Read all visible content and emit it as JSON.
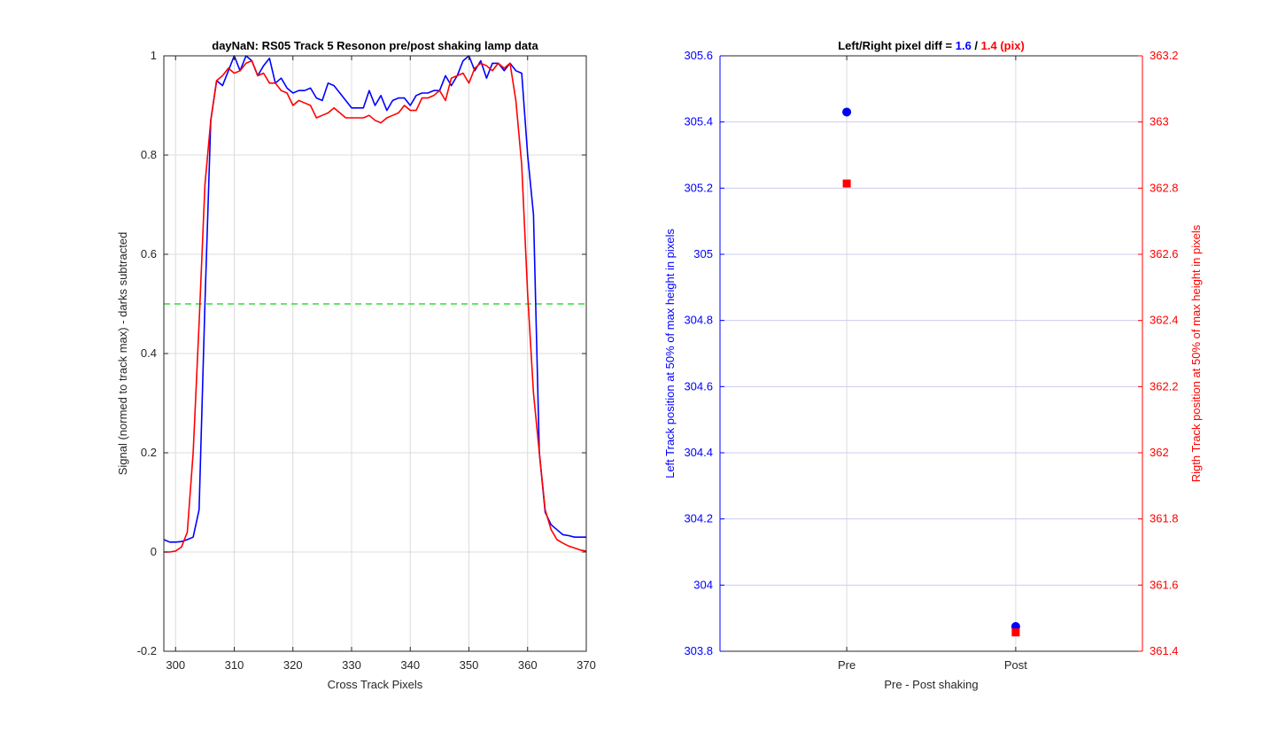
{
  "chart_data": [
    {
      "type": "line",
      "title": "dayNaN: RS05  Track 5 Resonon pre/post shaking lamp data",
      "xlabel": "Cross Track Pixels",
      "ylabel": "Signal (normed to track max) - darks subtracted",
      "xlim": [
        298,
        370
      ],
      "ylim": [
        -0.2,
        1
      ],
      "xticks": [
        300,
        310,
        320,
        330,
        340,
        350,
        360,
        370
      ],
      "xtick_labels": [
        "300",
        "310",
        "320",
        "330",
        "340",
        "350",
        "360",
        "370"
      ],
      "yticks": [
        -0.2,
        0,
        0.2,
        0.4,
        0.6,
        0.8,
        1
      ],
      "ytick_labels": [
        "-0.2",
        "0",
        "0.2",
        "0.4",
        "0.6",
        "0.8",
        "1"
      ],
      "grid": true,
      "hline": {
        "y": 0.5,
        "color": "#33dd33",
        "style": "dashed"
      },
      "series": [
        {
          "color": "#0000ff",
          "x": [
            298,
            299,
            300,
            301,
            302,
            303,
            304,
            305,
            306,
            307,
            308,
            309,
            310,
            311,
            312,
            313,
            314,
            315,
            316,
            317,
            318,
            319,
            320,
            321,
            322,
            323,
            324,
            325,
            326,
            327,
            328,
            329,
            330,
            331,
            332,
            333,
            334,
            335,
            336,
            337,
            338,
            339,
            340,
            341,
            342,
            343,
            344,
            345,
            346,
            347,
            348,
            349,
            350,
            351,
            352,
            353,
            354,
            355,
            356,
            357,
            358,
            359,
            360,
            361,
            362,
            363,
            364,
            365,
            366,
            367,
            368,
            369,
            370
          ],
          "y": [
            0.025,
            0.02,
            0.02,
            0.021,
            0.025,
            0.03,
            0.085,
            0.5,
            0.87,
            0.95,
            0.94,
            0.97,
            1.0,
            0.97,
            1.0,
            0.99,
            0.96,
            0.98,
            0.995,
            0.945,
            0.955,
            0.935,
            0.925,
            0.93,
            0.93,
            0.935,
            0.915,
            0.91,
            0.945,
            0.94,
            0.925,
            0.91,
            0.895,
            0.895,
            0.895,
            0.93,
            0.9,
            0.92,
            0.89,
            0.91,
            0.915,
            0.915,
            0.9,
            0.92,
            0.925,
            0.925,
            0.93,
            0.93,
            0.96,
            0.94,
            0.96,
            0.99,
            1.0,
            0.97,
            0.99,
            0.955,
            0.985,
            0.985,
            0.97,
            0.985,
            0.97,
            0.965,
            0.8,
            0.68,
            0.2,
            0.08,
            0.055,
            0.045,
            0.035,
            0.033,
            0.03,
            0.03,
            0.03
          ]
        },
        {
          "color": "#ff0000",
          "x": [
            298,
            299,
            300,
            301,
            302,
            303,
            304,
            305,
            306,
            307,
            308,
            309,
            310,
            311,
            312,
            313,
            314,
            315,
            316,
            317,
            318,
            319,
            320,
            321,
            322,
            323,
            324,
            325,
            326,
            327,
            328,
            329,
            330,
            331,
            332,
            333,
            334,
            335,
            336,
            337,
            338,
            339,
            340,
            341,
            342,
            343,
            344,
            345,
            346,
            347,
            348,
            349,
            350,
            351,
            352,
            353,
            354,
            355,
            356,
            357,
            358,
            359,
            360,
            361,
            362,
            363,
            364,
            365,
            366,
            367,
            368,
            369,
            370
          ],
          "y": [
            0.0,
            0.0,
            0.002,
            0.01,
            0.04,
            0.2,
            0.46,
            0.74,
            0.87,
            0.95,
            0.96,
            0.975,
            0.965,
            0.97,
            0.985,
            0.99,
            0.96,
            0.965,
            0.945,
            0.945,
            0.93,
            0.925,
            0.9,
            0.91,
            0.905,
            0.9,
            0.875,
            0.88,
            0.885,
            0.895,
            0.885,
            0.875,
            0.875,
            0.875,
            0.875,
            0.88,
            0.87,
            0.865,
            0.875,
            0.88,
            0.885,
            0.9,
            0.89,
            0.89,
            0.915,
            0.915,
            0.92,
            0.93,
            0.91,
            0.955,
            0.96,
            0.965,
            0.945,
            0.975,
            0.985,
            0.98,
            0.97,
            0.985,
            0.975,
            0.985,
            0.91,
            0.78,
            0.52,
            0.32,
            0.2,
            0.085,
            0.045,
            0.025,
            0.018,
            0.012,
            0.008,
            0.004,
            0.002
          ]
        }
      ]
    },
    {
      "type": "scatter",
      "title_parts": [
        {
          "text": "Left/Right pixel diff = ",
          "color": "#000000"
        },
        {
          "text": "1.6",
          "color": "#0000ff"
        },
        {
          "text": " / ",
          "color": "#000000"
        },
        {
          "text": "1.4 (pix)",
          "color": "#ff0000"
        }
      ],
      "xlabel": "Pre - Post shaking",
      "ylabel_left": "Left Track position at 50% of max height in pixels",
      "ylabel_right": "Rigth Track position at 50% of max height in pixels",
      "categories": [
        "Pre",
        "Post"
      ],
      "xlim": [
        0.25,
        2.75
      ],
      "ylim_left": [
        303.8,
        305.6
      ],
      "ylim_right": [
        361.4,
        363.2
      ],
      "yticks_left": [
        303.8,
        304,
        304.2,
        304.4,
        304.6,
        304.8,
        305,
        305.2,
        305.4,
        305.6
      ],
      "ytick_labels_left": [
        "303.8",
        "304",
        "304.2",
        "304.4",
        "304.6",
        "304.8",
        "305",
        "305.2",
        "305.4",
        "305.6"
      ],
      "yticks_right": [
        361.4,
        361.6,
        361.8,
        362,
        362.2,
        362.4,
        362.6,
        362.8,
        363,
        363.2
      ],
      "ytick_labels_right": [
        "361.4",
        "361.6",
        "361.8",
        "362",
        "362.2",
        "362.4",
        "362.6",
        "362.8",
        "363",
        "363.2"
      ],
      "grid": true,
      "left_axis_color": "#0000ff",
      "right_axis_color": "#ff0000",
      "series": [
        {
          "axis": "left",
          "marker": "circle",
          "color": "#0000ff",
          "x": [
            1,
            2
          ],
          "y": [
            305.43,
            303.875
          ]
        },
        {
          "axis": "right",
          "marker": "square",
          "color": "#ff0000",
          "x": [
            1,
            2
          ],
          "y": [
            362.814,
            361.457
          ]
        }
      ]
    }
  ]
}
